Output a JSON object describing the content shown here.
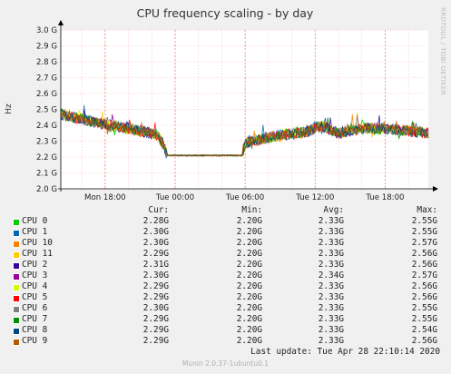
{
  "chart_data": {
    "type": "line",
    "title": "CPU frequency scaling - by day",
    "ylabel": "Hz",
    "ylim": [
      2.0,
      3.0
    ],
    "y_ticks": [
      "3.0 G",
      "2.9 G",
      "2.8 G",
      "2.7 G",
      "2.6 G",
      "2.5 G",
      "2.4 G",
      "2.3 G",
      "2.2 G",
      "2.1 G",
      "2.0 G"
    ],
    "x_ticks": [
      "Mon 18:00",
      "Tue 00:00",
      "Tue 06:00",
      "Tue 12:00",
      "Tue 18:00"
    ],
    "x_tick_hours": [
      18,
      24,
      30,
      36,
      42
    ],
    "x_range_hours": [
      14.2,
      45.7
    ],
    "grid": true,
    "profile_hours": [
      14.2,
      17.0,
      20.0,
      22.5,
      23.0,
      23.3,
      29.8,
      30.0,
      30.6,
      33.0,
      35.4,
      36.5,
      38.0,
      40.0,
      42.0,
      45.7
    ],
    "profile_values": [
      2.47,
      2.42,
      2.38,
      2.34,
      2.28,
      2.21,
      2.21,
      2.29,
      2.3,
      2.34,
      2.36,
      2.4,
      2.35,
      2.38,
      2.38,
      2.35
    ],
    "series": [
      {
        "name": "CPU 0",
        "color": "#00cc00",
        "cur": "2.28G",
        "min": "2.20G",
        "avg": "2.33G",
        "max": "2.55G"
      },
      {
        "name": "CPU 1",
        "color": "#0066b3",
        "cur": "2.30G",
        "min": "2.20G",
        "avg": "2.33G",
        "max": "2.55G"
      },
      {
        "name": "CPU 10",
        "color": "#ff8000",
        "cur": "2.30G",
        "min": "2.20G",
        "avg": "2.33G",
        "max": "2.57G"
      },
      {
        "name": "CPU 11",
        "color": "#ffcc00",
        "cur": "2.29G",
        "min": "2.20G",
        "avg": "2.33G",
        "max": "2.56G"
      },
      {
        "name": "CPU 2",
        "color": "#330099",
        "cur": "2.31G",
        "min": "2.20G",
        "avg": "2.33G",
        "max": "2.56G"
      },
      {
        "name": "CPU 3",
        "color": "#990099",
        "cur": "2.30G",
        "min": "2.20G",
        "avg": "2.34G",
        "max": "2.57G"
      },
      {
        "name": "CPU 4",
        "color": "#ccff00",
        "cur": "2.29G",
        "min": "2.20G",
        "avg": "2.33G",
        "max": "2.56G"
      },
      {
        "name": "CPU 5",
        "color": "#ff0000",
        "cur": "2.29G",
        "min": "2.20G",
        "avg": "2.33G",
        "max": "2.56G"
      },
      {
        "name": "CPU 6",
        "color": "#808080",
        "cur": "2.30G",
        "min": "2.20G",
        "avg": "2.33G",
        "max": "2.55G"
      },
      {
        "name": "CPU 7",
        "color": "#008f00",
        "cur": "2.29G",
        "min": "2.20G",
        "avg": "2.33G",
        "max": "2.55G"
      },
      {
        "name": "CPU 8",
        "color": "#00487d",
        "cur": "2.29G",
        "min": "2.20G",
        "avg": "2.33G",
        "max": "2.54G"
      },
      {
        "name": "CPU 9",
        "color": "#b35a00",
        "cur": "2.29G",
        "min": "2.20G",
        "avg": "2.33G",
        "max": "2.56G"
      }
    ]
  },
  "legend": {
    "cur": "Cur:",
    "min": "Min:",
    "avg": "Avg:",
    "max": "Max:"
  },
  "last_update": "Last update: Tue Apr 28 22:10:14 2020",
  "footer": "Munin 2.0.37-1ubuntu0.1",
  "watermark": "RRDTOOL / TOBI OETIKER",
  "colors": {
    "background": "#f0f0f0",
    "plot_bg": "#ffffff",
    "grid": "#ff9999",
    "axis": "#000000"
  }
}
